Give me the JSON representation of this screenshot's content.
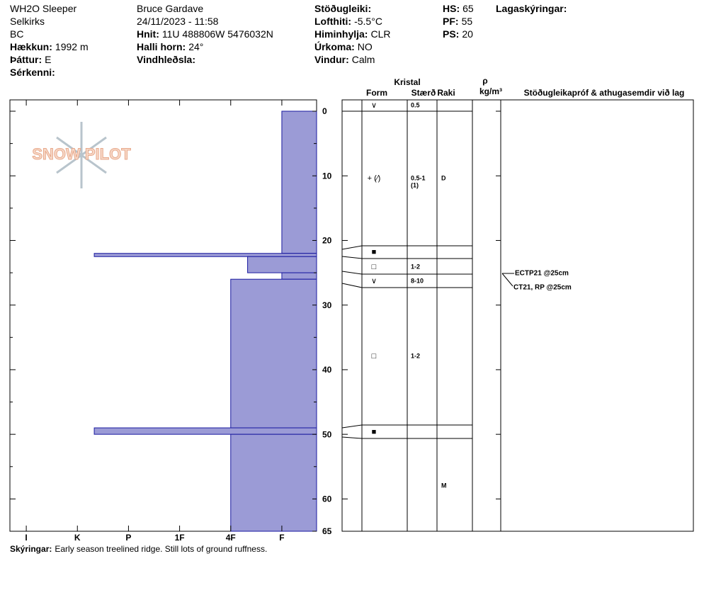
{
  "header": {
    "columns": [
      {
        "items": [
          {
            "value": "WH2O Sleeper"
          },
          {
            "value": "Selkirks"
          },
          {
            "value": "BC"
          },
          {
            "label": "Hækkun:",
            "value": "1992 m"
          },
          {
            "label": "Þáttur:",
            "value": "E"
          },
          {
            "label": "Sérkenni:"
          }
        ]
      },
      {
        "items": [
          {
            "value": "Bruce Gardave"
          },
          {
            "value": "24/11/2023 - 11:58"
          },
          {
            "label": "Hnit:",
            "value": "11U 488806W 5476032N"
          },
          {
            "label": "Halli horn:",
            "value": "24°"
          },
          {
            "label": "Vindhleðsla:"
          }
        ]
      },
      {
        "items": [
          {
            "label": "Stöðugleiki:"
          },
          {
            "label": "Lofthiti:",
            "value": "-5.5°C"
          },
          {
            "label": "Himinhylja:",
            "value": "CLR"
          },
          {
            "label": "Úrkoma:",
            "value": "NO"
          },
          {
            "label": "Vindur:",
            "value": "Calm"
          }
        ]
      },
      {
        "items": [
          {
            "label": "HS:",
            "value": "65"
          },
          {
            "label": "PF:",
            "value": "55"
          },
          {
            "label": "PS:",
            "value": "20"
          }
        ]
      },
      {
        "items": [
          {
            "label": "Lagaskýringar:"
          }
        ]
      }
    ]
  },
  "logo": "SNOW PILOT",
  "profile": {
    "depth_lim": [
      0,
      65
    ],
    "depth_ticks": [
      0,
      10,
      20,
      30,
      40,
      50,
      60,
      65
    ],
    "depth_minor_ticks": [
      5,
      15,
      25,
      35,
      45,
      55
    ],
    "hardness_lim": [
      0.68,
      6.68
    ],
    "hardness_ticks": [
      {
        "value": 1,
        "label": "I"
      },
      {
        "value": 2,
        "label": "K"
      },
      {
        "value": 3,
        "label": "P"
      },
      {
        "value": 4,
        "label": "1F"
      },
      {
        "value": 5,
        "label": "4F"
      },
      {
        "value": 6,
        "label": "F"
      }
    ],
    "color": "#9b9bd6",
    "layers": [
      {
        "top": 0,
        "bottom": 22,
        "hardness": 6
      },
      {
        "top": 22,
        "bottom": 22.5,
        "hardness": 2.33
      },
      {
        "top": 22.5,
        "bottom": 25,
        "hardness": 5.33
      },
      {
        "top": 25,
        "bottom": 26,
        "hardness": 6
      },
      {
        "top": 26,
        "bottom": 49,
        "hardness": 5
      },
      {
        "top": 49,
        "bottom": 50,
        "hardness": 2.33
      },
      {
        "top": 50,
        "bottom": 65,
        "hardness": 5
      }
    ]
  },
  "grains": {
    "headers": {
      "group": "Kristal",
      "form": "Form",
      "size": "Stærð",
      "moisture": "Raki",
      "density": "ρ",
      "density_unit": "kg/m³",
      "tests": "Stöðugleikapróf & athugasemdir við lag"
    },
    "rows": [
      {
        "form": "∨",
        "size": "0.5"
      },
      {
        "form": "+ (⁄)",
        "size": "0.5-1",
        "size_note": "(1)",
        "moisture": "D"
      },
      {
        "form": "■"
      },
      {
        "form": "□",
        "size": "1-2"
      },
      {
        "form": "∨",
        "size": "8-10"
      },
      {
        "form": "□",
        "size": "1-2"
      },
      {
        "form": "■"
      },
      {
        "moisture": "M"
      }
    ]
  },
  "tests": [
    {
      "text": "ECTP21 @25cm"
    },
    {
      "text": "CT21, RP @25cm"
    }
  ],
  "comment": {
    "label": "Skýringar:",
    "value": "Early season treelined ridge.  Still lots of ground ruffness."
  }
}
